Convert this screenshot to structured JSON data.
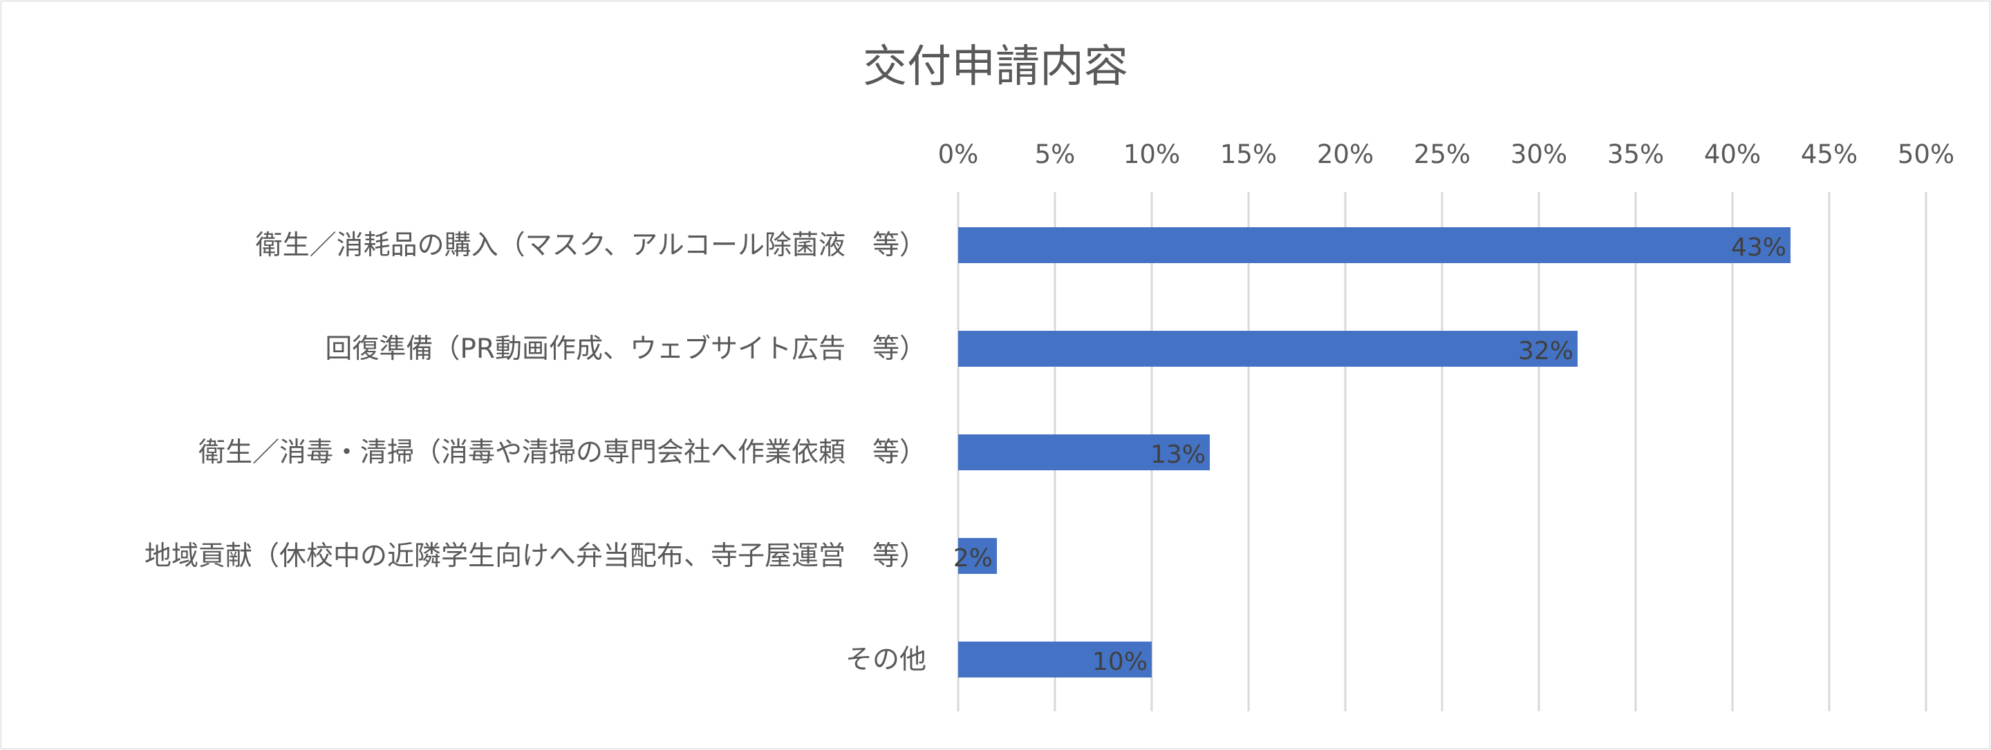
{
  "chart_data": {
    "type": "bar",
    "orientation": "horizontal",
    "title": "交付申請内容",
    "categories": [
      "衛生／消耗品の購入（マスク、アルコール除菌液　等）",
      "回復準備（PR動画作成、ウェブサイト広告　等）",
      "衛生／消毒・清掃（消毒や清掃の専門会社へ作業依頼　等）",
      "地域貢献（休校中の近隣学生向けへ弁当配布、寺子屋運営　等）",
      "その他"
    ],
    "values": [
      43,
      32,
      13,
      2,
      10
    ],
    "data_labels": [
      "43%",
      "32%",
      "13%",
      "2%",
      "10%"
    ],
    "x_ticks": [
      "0%",
      "5%",
      "10%",
      "15%",
      "20%",
      "25%",
      "30%",
      "35%",
      "40%",
      "45%",
      "50%"
    ],
    "xlim": [
      0,
      50
    ],
    "x_axis_position": "top",
    "grid": true,
    "legend": "none",
    "bar_color": "#4472c4"
  }
}
